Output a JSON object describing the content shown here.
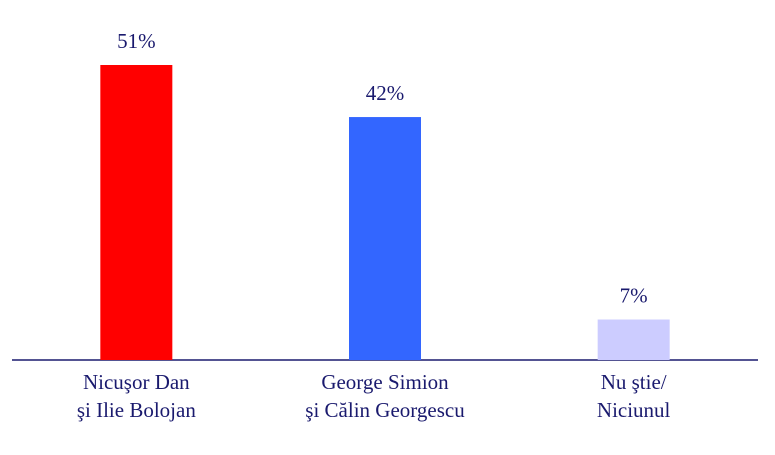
{
  "chart_data": {
    "type": "bar",
    "categories": [
      [
        "Nicuşor Dan",
        "şi Ilie Bolojan"
      ],
      [
        "George Simion",
        "şi Călin Georgescu"
      ],
      [
        "Nu ştie/",
        "Niciunul"
      ]
    ],
    "values": [
      51,
      42,
      7
    ],
    "value_labels": [
      "51%",
      "42%",
      "7%"
    ],
    "colors": [
      "#ff0000",
      "#3366ff",
      "#ccccff"
    ]
  }
}
